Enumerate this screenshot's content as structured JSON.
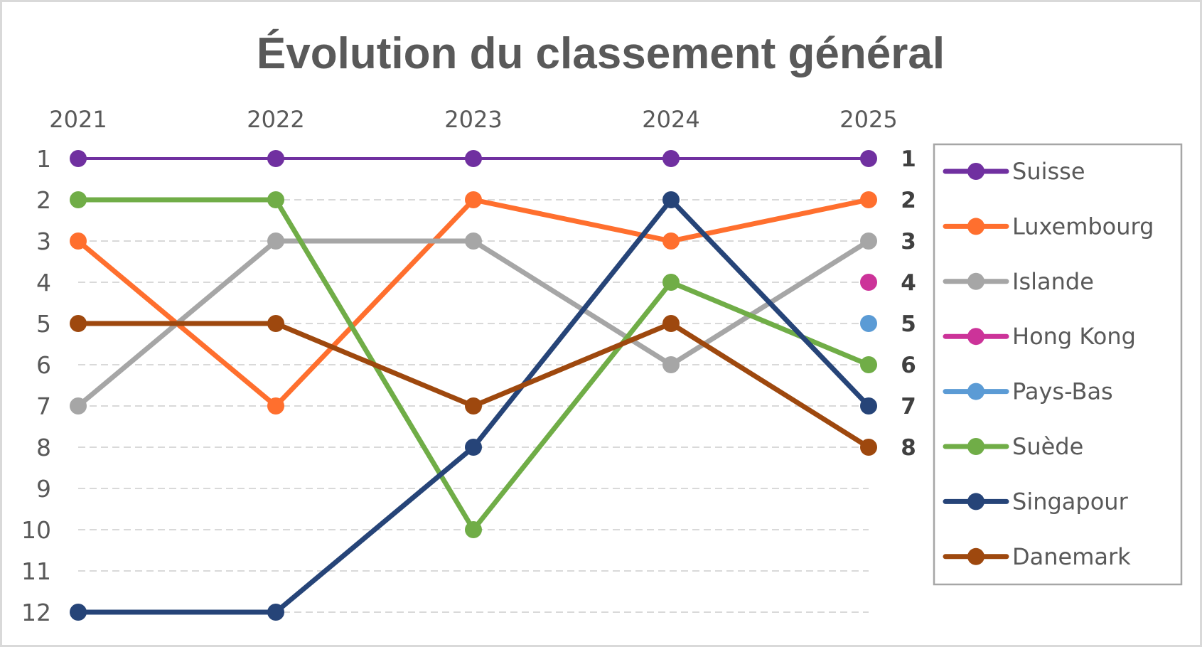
{
  "chart_data": {
    "type": "line",
    "title": "Évolution du classement général",
    "xlabel": "",
    "ylabel": "",
    "x": [
      "2021",
      "2022",
      "2023",
      "2024",
      "2025"
    ],
    "y_ticks": [
      "1",
      "2",
      "3",
      "4",
      "5",
      "6",
      "7",
      "8",
      "9",
      "10",
      "11",
      "12"
    ],
    "ylim": [
      1,
      12
    ],
    "y_inverted": true,
    "grid": true,
    "legend_position": "right",
    "final_rank_labels": [
      "1",
      "2",
      "3",
      "4",
      "5",
      "6",
      "7",
      "8"
    ],
    "series": [
      {
        "name": "Suisse",
        "color": "#7030a0",
        "values": [
          1,
          1,
          1,
          1,
          1
        ]
      },
      {
        "name": "Luxembourg",
        "color": "#ff6f2e",
        "values": [
          3,
          7,
          2,
          3,
          2
        ]
      },
      {
        "name": "Islande",
        "color": "#a6a6a6",
        "values": [
          7,
          3,
          3,
          6,
          3
        ]
      },
      {
        "name": "Hong Kong",
        "color": "#cc3399",
        "values": [
          null,
          null,
          null,
          null,
          4
        ]
      },
      {
        "name": "Pays-Bas",
        "color": "#5b9bd5",
        "values": [
          null,
          null,
          null,
          null,
          5
        ]
      },
      {
        "name": "Suède",
        "color": "#70ad47",
        "values": [
          2,
          2,
          10,
          4,
          6
        ]
      },
      {
        "name": "Singapour",
        "color": "#264478",
        "values": [
          12,
          12,
          8,
          2,
          7
        ]
      },
      {
        "name": "Danemark",
        "color": "#9e480e",
        "values": [
          5,
          5,
          7,
          5,
          8
        ]
      }
    ]
  }
}
